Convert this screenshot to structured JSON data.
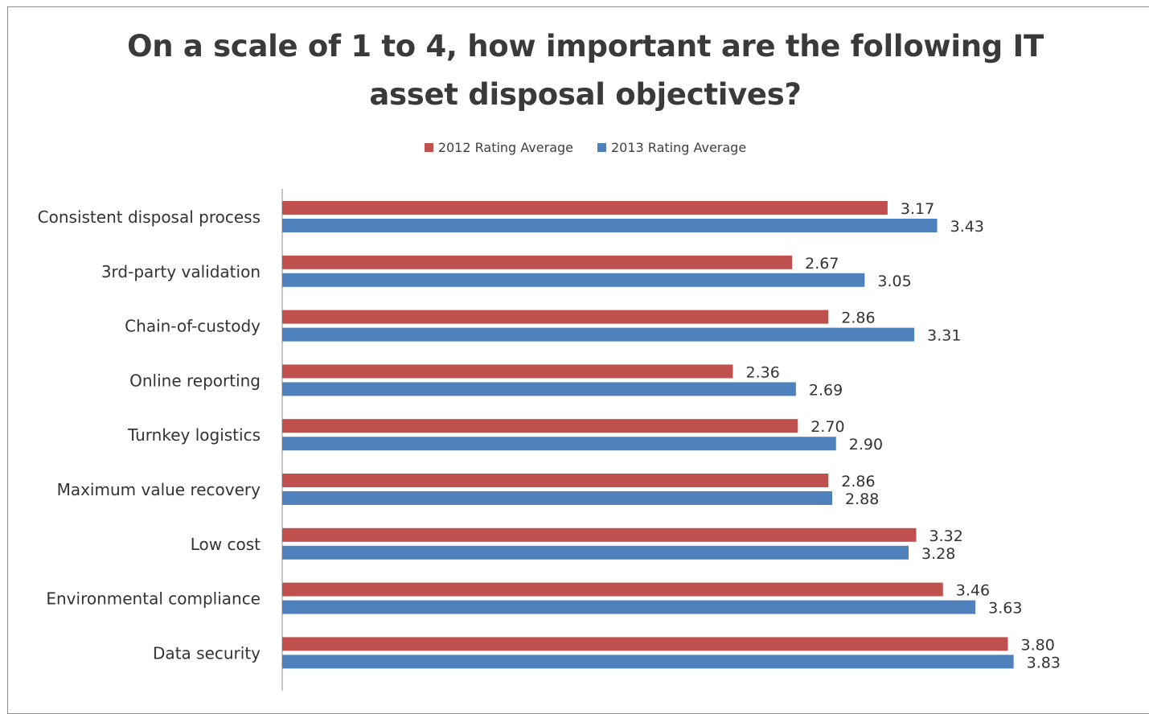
{
  "chart_data": {
    "type": "bar",
    "orientation": "horizontal",
    "title": "On a scale of 1 to 4, how important are the following IT asset disposal objectives?",
    "title_lines": [
      "On a scale of 1 to 4, how important are the following IT",
      "asset disposal objectives?"
    ],
    "legend_placement": "top",
    "grid": false,
    "xlim": [
      0,
      4
    ],
    "categories": [
      "Consistent disposal process",
      "3rd-party validation",
      "Chain-of-custody",
      "Online reporting",
      "Turnkey logistics",
      "Maximum value recovery",
      "Low cost",
      "Environmental compliance",
      "Data security"
    ],
    "series": [
      {
        "name": "2012 Rating Average",
        "color": "#c0504d",
        "values": [
          3.17,
          2.67,
          2.86,
          2.36,
          2.7,
          2.86,
          3.32,
          3.46,
          3.8
        ],
        "labels": [
          "3.17",
          "2.67",
          "2.86",
          "2.36",
          "2.70",
          "2.86",
          "3.32",
          "3.46",
          "3.80"
        ]
      },
      {
        "name": "2013 Rating Average",
        "color": "#4f81bd",
        "values": [
          3.43,
          3.05,
          3.31,
          2.69,
          2.9,
          2.88,
          3.28,
          3.63,
          3.83
        ],
        "labels": [
          "3.43",
          "3.05",
          "3.31",
          "2.69",
          "2.90",
          "2.88",
          "3.28",
          "3.63",
          "3.83"
        ]
      }
    ]
  }
}
